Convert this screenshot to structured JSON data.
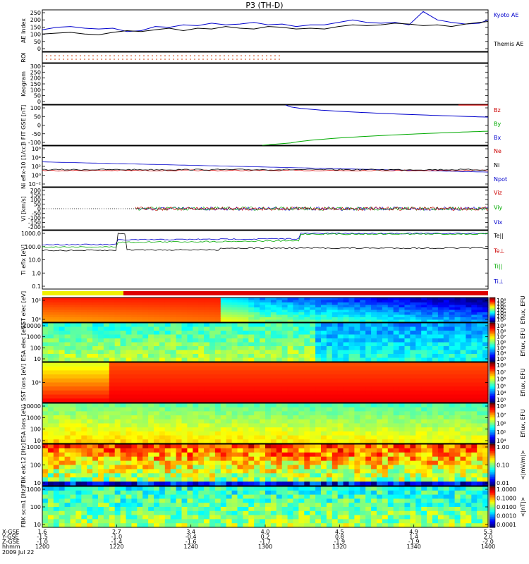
{
  "title": "P3 (TH-D)",
  "chart_data": [
    {
      "panel": "ae",
      "type": "line",
      "ylabel": "AE Index",
      "ylim": [
        0,
        250
      ],
      "yticks": [
        "250",
        "200",
        "150",
        "100",
        "50",
        "0"
      ],
      "legend": [
        {
          "name": "Kyoto AE",
          "color": "#0000cc"
        },
        {
          "name": "Themis AE",
          "color": "#000000"
        }
      ],
      "series": [
        {
          "name": "Kyoto AE",
          "color": "#0000cc",
          "x": [
            0,
            20,
            40,
            60,
            80,
            100,
            120,
            140,
            160,
            180,
            200,
            220,
            240,
            260,
            280,
            300,
            320,
            340,
            360,
            380,
            400,
            420,
            440,
            460,
            480,
            500,
            520,
            540,
            560,
            580,
            600,
            620,
            632
          ],
          "y": [
            130,
            145,
            150,
            140,
            135,
            140,
            120,
            125,
            150,
            145,
            160,
            155,
            170,
            160,
            165,
            175,
            160,
            165,
            150,
            160,
            160,
            175,
            190,
            175,
            170,
            175,
            160,
            240,
            190,
            175,
            165,
            170,
            190
          ]
        },
        {
          "name": "Themis AE",
          "color": "#000000",
          "x": [
            0,
            20,
            40,
            60,
            80,
            100,
            120,
            140,
            160,
            180,
            200,
            220,
            240,
            260,
            280,
            300,
            320,
            340,
            360,
            380,
            400,
            420,
            440,
            460,
            480,
            500,
            520,
            540,
            560,
            580,
            600,
            620,
            632
          ],
          "y": [
            105,
            110,
            115,
            105,
            100,
            115,
            125,
            120,
            130,
            140,
            125,
            140,
            135,
            150,
            140,
            135,
            150,
            145,
            135,
            140,
            135,
            150,
            160,
            155,
            160,
            170,
            165,
            155,
            160,
            150,
            165,
            175,
            180
          ]
        }
      ]
    },
    {
      "panel": "roi",
      "type": "scatter",
      "ylabel": "ROI",
      "yticks": []
    },
    {
      "panel": "keogram",
      "type": "line",
      "ylabel": "Keogram",
      "ylim": [
        0,
        300
      ],
      "yticks": [
        "300",
        "250",
        "200",
        "150",
        "100",
        "50",
        "0"
      ]
    },
    {
      "panel": "bfit",
      "type": "line",
      "ylabel": "B FIT GSE [nT]",
      "ylim": [
        -100,
        100
      ],
      "yticks": [
        "100",
        "50",
        "0",
        "-50",
        "-100"
      ],
      "legend": [
        {
          "name": "Bz",
          "color": "#cc0000"
        },
        {
          "name": "By",
          "color": "#00aa00"
        },
        {
          "name": "Bx",
          "color": "#0000cc"
        }
      ]
    },
    {
      "panel": "density",
      "type": "line",
      "ylabel": "Ni eflx-10 [1/cc]",
      "yticks": [
        "10⁶",
        "10⁴",
        "10²",
        "10⁰",
        "10⁻²"
      ],
      "legend": [
        {
          "name": "Ne",
          "color": "#cc0000"
        },
        {
          "name": "Ni",
          "color": "#000000"
        },
        {
          "name": "Npot",
          "color": "#0000cc"
        }
      ]
    },
    {
      "panel": "velocity",
      "type": "line",
      "ylabel": "Vi [km/s]",
      "ylim": [
        -200,
        200
      ],
      "yticks": [
        "200",
        "150",
        "100",
        "50",
        "0",
        "-50",
        "-100",
        "-150",
        "-200"
      ],
      "legend": [
        {
          "name": "Viz",
          "color": "#cc0000"
        },
        {
          "name": "Viy",
          "color": "#00aa00"
        },
        {
          "name": "Vix",
          "color": "#0000cc"
        }
      ]
    },
    {
      "panel": "temperature",
      "type": "line",
      "ylabel": "Ti eflx [eV]",
      "yticks": [
        "1000.0",
        "100.0",
        "10.0",
        "1.0",
        "0.1"
      ],
      "legend": [
        {
          "name": "Te||",
          "color": "#000000"
        },
        {
          "name": "Te⊥",
          "color": "#cc0000"
        },
        {
          "name": "Ti||",
          "color": "#00aa00"
        },
        {
          "name": "Ti⊥",
          "color": "#0000cc"
        }
      ]
    },
    {
      "panel": "sst_e",
      "type": "heatmap",
      "ylabel": "SST elec [eV]",
      "yticks": [
        "10⁵",
        "10⁴"
      ],
      "colorbar": {
        "label": "Eflux, EFU",
        "ticks": [
          "10⁸",
          "10⁷",
          "10⁶",
          "10⁵",
          "10⁴",
          "10³",
          "10²"
        ]
      }
    },
    {
      "panel": "esa_e",
      "type": "heatmap",
      "ylabel": "ESA elec [eV]",
      "yticks": [
        "10000",
        "1000",
        "100",
        "10"
      ],
      "colorbar": {
        "label": "Eflux, EFU",
        "ticks": [
          "10⁹",
          "10⁸",
          "10⁷",
          "10⁶",
          "10⁵",
          "10⁴",
          "10³"
        ]
      }
    },
    {
      "panel": "sst_i",
      "type": "heatmap",
      "ylabel": "SST ions [eV]",
      "yticks": [
        "10⁵"
      ],
      "colorbar": {
        "label": "Eflux, EFU",
        "ticks": [
          "10⁸",
          "10⁷",
          "10⁶",
          "10⁵",
          "10⁴",
          "10³"
        ]
      }
    },
    {
      "panel": "esa_i",
      "type": "heatmap",
      "ylabel": "ESA ions [eV]",
      "yticks": [
        "10000",
        "1000",
        "100",
        "10"
      ],
      "colorbar": {
        "label": "Eflux, EFU",
        "ticks": [
          "10⁸",
          "10⁷",
          "10⁶",
          "10⁵",
          "10⁴"
        ]
      }
    },
    {
      "panel": "fbk_e",
      "type": "heatmap",
      "ylabel": "FBK edc12 [Hz]",
      "yticks": [
        "1000",
        "100",
        "10"
      ],
      "colorbar": {
        "label": "<|mV/m|>",
        "ticks": [
          "1.00",
          "0.10",
          "0.01"
        ]
      }
    },
    {
      "panel": "fbk_b",
      "type": "heatmap",
      "ylabel": "FBK scm1 [Hz]",
      "yticks": [
        "1000",
        "100",
        "10"
      ],
      "colorbar": {
        "label": "<|nT|>",
        "ticks": [
          "1.0000",
          "0.1000",
          "0.0100",
          "0.0010",
          "0.0001"
        ]
      }
    }
  ],
  "xaxis": {
    "row_labels": [
      "X-GSE",
      "Y-GSE",
      "Z-GSE",
      "hhmm",
      "2009 Jul 22"
    ],
    "columns": [
      {
        "x": "1.6",
        "y": "-1.5",
        "z": "-1.0",
        "t": "1200"
      },
      {
        "x": "2.7",
        "y": "-1.0",
        "z": "-1.4",
        "t": "1220"
      },
      {
        "x": "3.4",
        "y": "-0.4",
        "z": "-1.6",
        "t": "1240"
      },
      {
        "x": "4.0",
        "y": "0.2",
        "z": "-1.7",
        "t": "1300"
      },
      {
        "x": "4.5",
        "y": "0.8",
        "z": "-1.9",
        "t": "1320"
      },
      {
        "x": "4.9",
        "y": "1.4",
        "z": "-1.9",
        "t": "1340"
      },
      {
        "x": "5.3",
        "y": "2.0",
        "z": "-2.0",
        "t": "1400"
      }
    ]
  },
  "colors": {
    "accent": "#cc0000",
    "blue": "#0000cc",
    "green": "#00aa00"
  }
}
